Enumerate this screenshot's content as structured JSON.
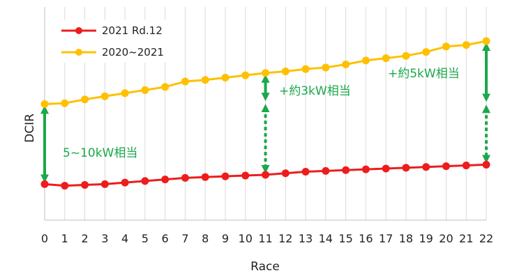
{
  "chart_data": {
    "type": "line",
    "xlabel": "Race",
    "ylabel": "DCIR",
    "x": [
      0,
      1,
      2,
      3,
      4,
      5,
      6,
      7,
      8,
      9,
      10,
      11,
      12,
      13,
      14,
      15,
      16,
      17,
      18,
      19,
      20,
      21,
      22
    ],
    "xlim": [
      0,
      22
    ],
    "ylim": [
      0,
      100
    ],
    "grid": "vertical",
    "legend_position": "top-left",
    "series": [
      {
        "name": "2021 Rd.12",
        "color": "#ee1c1c",
        "values": [
          11.5,
          10.5,
          11.0,
          11.5,
          12.5,
          13.5,
          14.5,
          15.5,
          16.0,
          16.5,
          17.0,
          17.5,
          18.5,
          19.5,
          20.0,
          20.5,
          21.0,
          21.5,
          22.0,
          22.5,
          23.0,
          23.5,
          24.0
        ]
      },
      {
        "name": "2020~2021",
        "color": "#ffc000",
        "values": [
          63.0,
          63.5,
          66.0,
          68.0,
          70.0,
          72.0,
          74.0,
          77.5,
          78.5,
          80.0,
          81.5,
          83.0,
          84.0,
          85.5,
          86.5,
          88.5,
          91.0,
          92.5,
          94.0,
          96.5,
          100.0,
          101.0,
          103.5
        ]
      }
    ],
    "annotations": [
      {
        "text": "5~10kW相当",
        "x": 0,
        "from": 11.5,
        "to": 63.0,
        "style": "solid"
      },
      {
        "text": "+約3kW相当",
        "x": 11,
        "from": 83.0,
        "to": 64.0,
        "style": "solid",
        "dotted_to": 17.5
      },
      {
        "text": "+約5kW相当",
        "x": 22,
        "from": 103.5,
        "to": 63.5,
        "style": "solid",
        "dotted_to": 24.0
      }
    ],
    "annotation_color": "#1ba84a"
  }
}
